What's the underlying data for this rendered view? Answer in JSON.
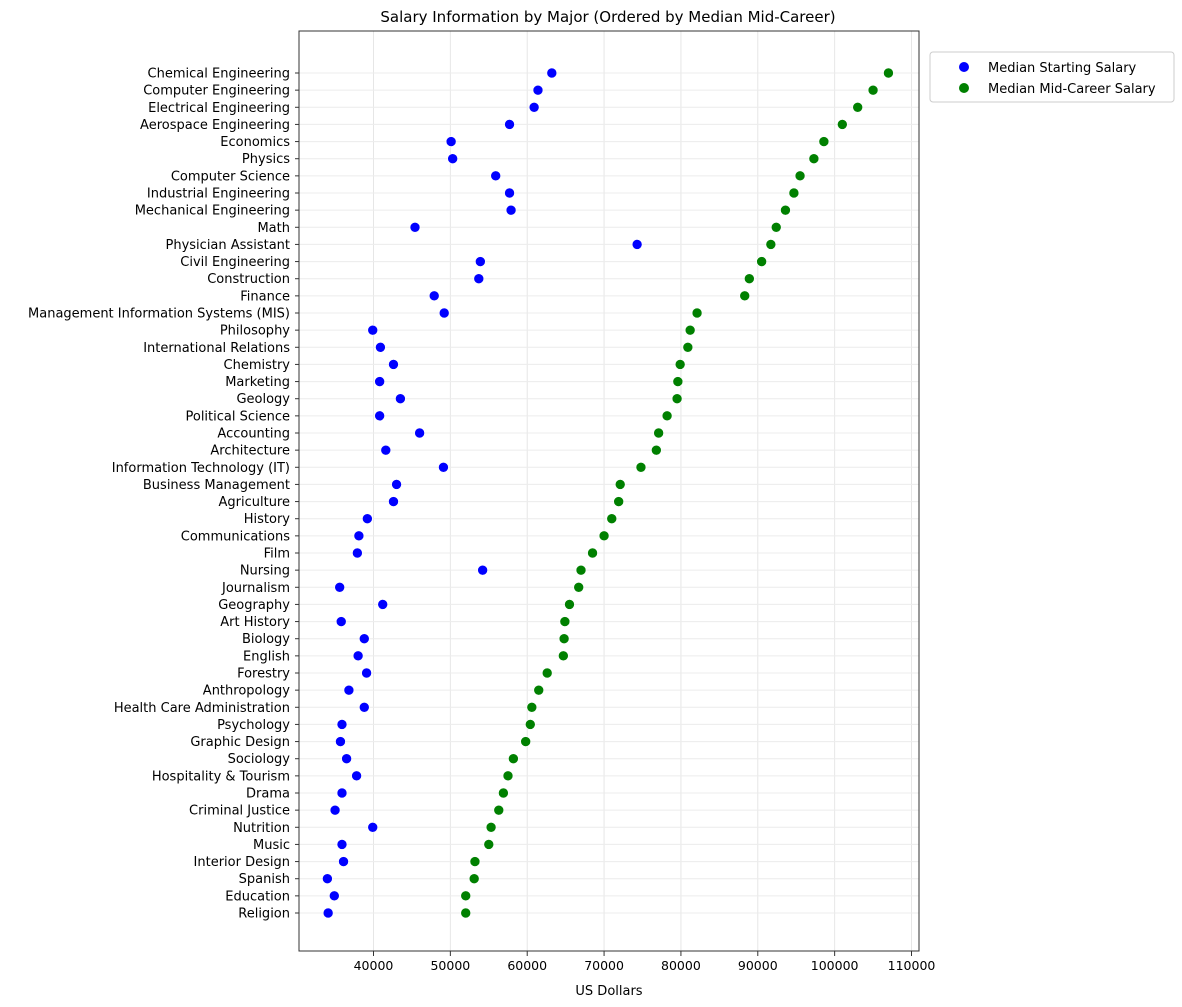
{
  "chart_data": {
    "type": "scatter",
    "title": "Salary Information by Major (Ordered by Median Mid-Career)",
    "xlabel": "US Dollars",
    "ylabel": "",
    "xlim": [
      30000,
      111000
    ],
    "xticks": [
      40000,
      50000,
      60000,
      70000,
      80000,
      90000,
      100000,
      110000
    ],
    "xtick_labels": [
      "40000",
      "50000",
      "60000",
      "70000",
      "80000",
      "90000",
      "100000",
      "110000"
    ],
    "grid": true,
    "legend_position": "outside-top-right",
    "categories": [
      "Chemical Engineering",
      "Computer Engineering",
      "Electrical Engineering",
      "Aerospace Engineering",
      "Economics",
      "Physics",
      "Computer Science",
      "Industrial Engineering",
      "Mechanical Engineering",
      "Math",
      "Physician Assistant",
      "Civil Engineering",
      "Construction",
      "Finance",
      "Management Information Systems (MIS)",
      "Philosophy",
      "International Relations",
      "Chemistry",
      "Marketing",
      "Geology",
      "Political Science",
      "Accounting",
      "Architecture",
      "Information Technology (IT)",
      "Business Management",
      "Agriculture",
      "History",
      "Communications",
      "Film",
      "Nursing",
      "Journalism",
      "Geography",
      "Art History",
      "Biology",
      "English",
      "Forestry",
      "Anthropology",
      "Health Care Administration",
      "Psychology",
      "Graphic Design",
      "Sociology",
      "Hospitality & Tourism",
      "Drama",
      "Criminal Justice",
      "Nutrition",
      "Music",
      "Interior Design",
      "Spanish",
      "Education",
      "Religion"
    ],
    "series": [
      {
        "name": "Median Starting Salary",
        "color": "#0000ff",
        "values": [
          63200,
          61400,
          60900,
          57700,
          50100,
          50300,
          55900,
          57700,
          57900,
          45400,
          74300,
          53900,
          53700,
          47900,
          49200,
          39900,
          40900,
          42600,
          40800,
          43500,
          40800,
          46000,
          41600,
          49100,
          43000,
          42600,
          39200,
          38100,
          37900,
          54200,
          35600,
          41200,
          35800,
          38800,
          38000,
          39100,
          36800,
          38800,
          35900,
          35700,
          36500,
          37800,
          35900,
          35000,
          39900,
          35900,
          36100,
          34000,
          34900,
          34100
        ]
      },
      {
        "name": "Median Mid-Career Salary",
        "color": "#008000",
        "values": [
          107000,
          105000,
          103000,
          101000,
          98600,
          97300,
          95500,
          94700,
          93600,
          92400,
          91700,
          90500,
          88900,
          88300,
          82100,
          81200,
          80900,
          79900,
          79600,
          79500,
          78200,
          77100,
          76800,
          74800,
          72100,
          71900,
          71000,
          70000,
          68500,
          67000,
          66700,
          65500,
          64900,
          64800,
          64700,
          62600,
          61500,
          60600,
          60400,
          59800,
          58200,
          57500,
          56900,
          56300,
          55300,
          55000,
          53200,
          53100,
          52000,
          52000
        ]
      }
    ]
  }
}
